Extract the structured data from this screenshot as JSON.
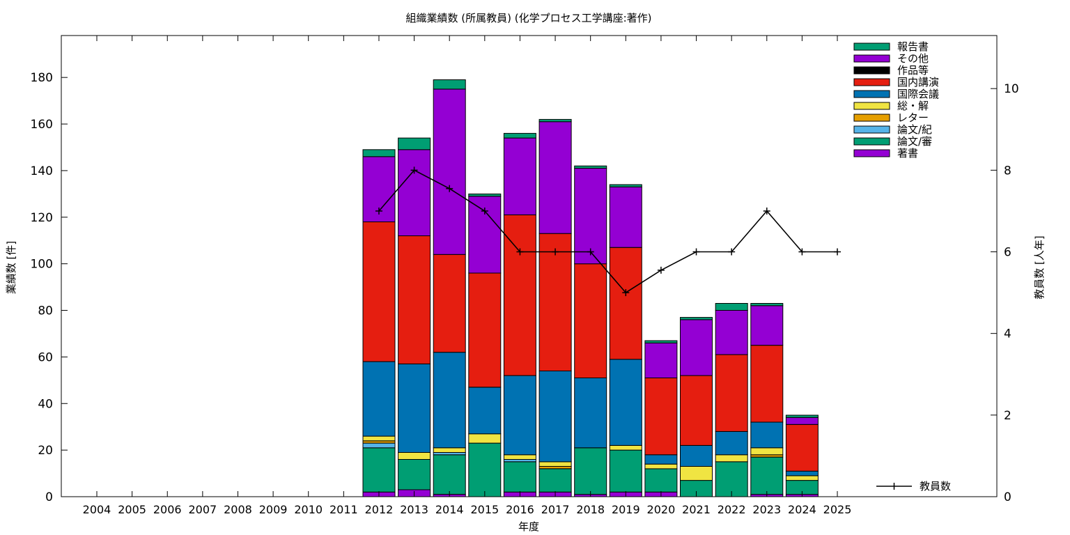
{
  "chart_data": {
    "type": "bar",
    "stacked": true,
    "title": "組織業績数 (所属教員) (化学プロセス工学講座:著作)",
    "xlabel": "年度",
    "ylabel": "業績数 [件]",
    "y2label": "教員数 [人年]",
    "categories": [
      "2004",
      "2005",
      "2006",
      "2007",
      "2008",
      "2009",
      "2010",
      "2011",
      "2012",
      "2013",
      "2014",
      "2015",
      "2016",
      "2017",
      "2018",
      "2019",
      "2020",
      "2021",
      "2022",
      "2023",
      "2024",
      "2025"
    ],
    "ylim": [
      0,
      198
    ],
    "y2lim": [
      0,
      11.3
    ],
    "yticks": [
      0,
      20,
      40,
      60,
      80,
      100,
      120,
      140,
      160,
      180
    ],
    "y2ticks": [
      0,
      2,
      4,
      6,
      8,
      10
    ],
    "grid": false,
    "legend_position": "top-right",
    "series": [
      {
        "name": "著書",
        "color": "#9400d3",
        "values": [
          0,
          0,
          0,
          0,
          0,
          0,
          0,
          0,
          2,
          3,
          1,
          0,
          2,
          2,
          1,
          2,
          2,
          0,
          0,
          1,
          1,
          0
        ]
      },
      {
        "name": "論文/審",
        "color": "#009e73",
        "values": [
          0,
          0,
          0,
          0,
          0,
          0,
          0,
          0,
          19,
          13,
          17,
          23,
          13,
          10,
          20,
          18,
          10,
          7,
          15,
          16,
          6,
          0
        ]
      },
      {
        "name": "論文/紀",
        "color": "#56b4e9",
        "values": [
          0,
          0,
          0,
          0,
          0,
          0,
          0,
          0,
          2,
          0,
          1,
          0,
          1,
          0,
          0,
          0,
          0,
          0,
          0,
          0,
          0,
          0
        ]
      },
      {
        "name": "レター",
        "color": "#e69f00",
        "values": [
          0,
          0,
          0,
          0,
          0,
          0,
          0,
          0,
          1,
          0,
          0,
          0,
          0,
          1,
          0,
          0,
          0,
          0,
          0,
          1,
          0,
          0
        ]
      },
      {
        "name": "総・解",
        "color": "#f0e442",
        "values": [
          0,
          0,
          0,
          0,
          0,
          0,
          0,
          0,
          2,
          3,
          2,
          4,
          2,
          2,
          0,
          2,
          2,
          6,
          3,
          3,
          2,
          0
        ]
      },
      {
        "name": "国際会議",
        "color": "#0072b2",
        "values": [
          0,
          0,
          0,
          0,
          0,
          0,
          0,
          0,
          32,
          38,
          41,
          20,
          34,
          39,
          30,
          37,
          4,
          9,
          10,
          11,
          2,
          0
        ]
      },
      {
        "name": "国内講演",
        "color": "#e51e10",
        "values": [
          0,
          0,
          0,
          0,
          0,
          0,
          0,
          0,
          60,
          55,
          42,
          49,
          69,
          59,
          49,
          48,
          33,
          30,
          33,
          33,
          20,
          0
        ]
      },
      {
        "name": "作品等",
        "color": "#000000",
        "values": [
          0,
          0,
          0,
          0,
          0,
          0,
          0,
          0,
          0,
          0,
          0,
          0,
          0,
          0,
          0,
          0,
          0,
          0,
          0,
          0,
          0,
          0
        ]
      },
      {
        "name": "その他",
        "color": "#9400d3",
        "values": [
          0,
          0,
          0,
          0,
          0,
          0,
          0,
          0,
          28,
          37,
          71,
          33,
          33,
          48,
          41,
          26,
          15,
          24,
          19,
          17,
          3,
          0
        ]
      },
      {
        "name": "報告書",
        "color": "#009e73",
        "values": [
          0,
          0,
          0,
          0,
          0,
          0,
          0,
          0,
          3,
          5,
          4,
          1,
          2,
          1,
          1,
          1,
          1,
          1,
          3,
          1,
          1,
          0
        ]
      }
    ],
    "line_series": {
      "name": "教員数",
      "color": "#000000",
      "values": [
        null,
        null,
        null,
        null,
        null,
        null,
        null,
        null,
        7,
        8,
        7.55,
        7,
        6,
        6,
        6,
        5,
        5.55,
        6,
        6,
        7,
        6,
        6
      ]
    }
  }
}
